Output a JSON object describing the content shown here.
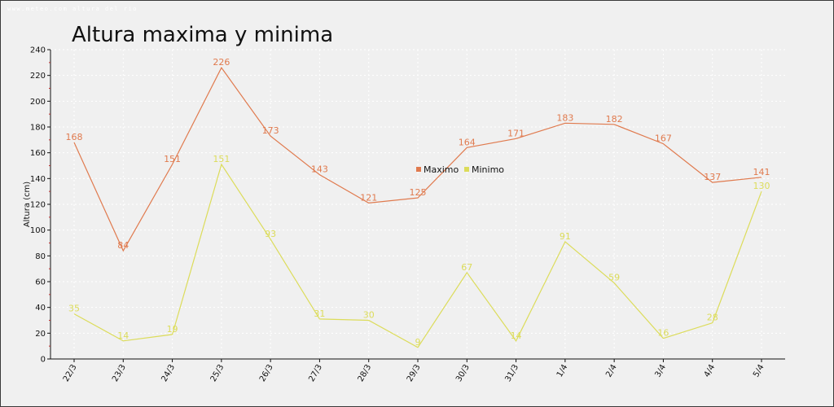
{
  "watermark": "www.meteo.com altura del rio",
  "chart_data": {
    "type": "line",
    "title": "Altura maxima y minima",
    "ylabel": "Altura (cm)",
    "xlabel": "",
    "ylim": [
      0,
      240
    ],
    "yticks": [
      0,
      20,
      40,
      60,
      80,
      100,
      120,
      140,
      160,
      180,
      200,
      220,
      240
    ],
    "categories": [
      "22/3",
      "23/3",
      "24/3",
      "25/3",
      "26/3",
      "27/3",
      "28/3",
      "29/3",
      "30/3",
      "31/3",
      "1/4",
      "2/4",
      "3/4",
      "4/4",
      "5/4"
    ],
    "grid": true,
    "legend_position": "center",
    "series": [
      {
        "name": "Maximo",
        "color": "#e07a4e",
        "values": [
          168,
          84,
          151,
          226,
          173,
          143,
          121,
          125,
          164,
          171,
          183,
          182,
          167,
          137,
          141
        ]
      },
      {
        "name": "Minimo",
        "color": "#dcdc5a",
        "values": [
          35,
          14,
          19,
          151,
          93,
          31,
          30,
          9,
          67,
          14,
          91,
          59,
          16,
          28,
          130
        ]
      }
    ]
  }
}
